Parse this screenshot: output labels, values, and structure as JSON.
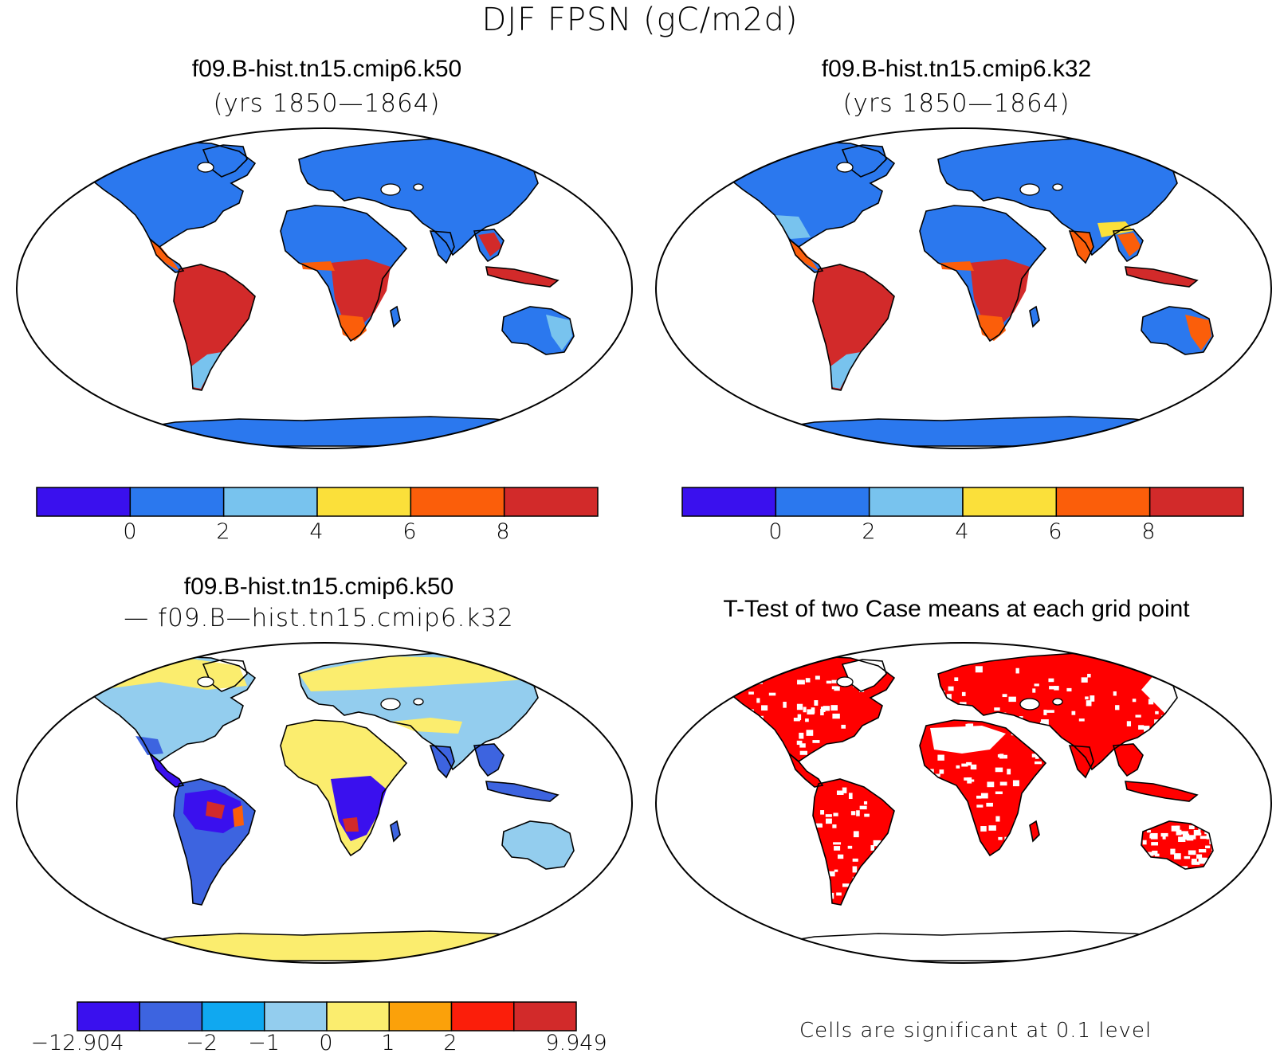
{
  "main_title": "DJF FPSN (gC/m2d)",
  "panels": {
    "top_left": {
      "title": "f09.B-hist.tn15.cmip6.k50",
      "subtitle": "(yrs 1850—1864)"
    },
    "top_right": {
      "title": "f09.B-hist.tn15.cmip6.k32",
      "subtitle": "(yrs 1850—1864)"
    },
    "bottom_left": {
      "title": "f09.B-hist.tn15.cmip6.k50",
      "subtitle": "— f09.B—hist.tn15.cmip6.k32"
    },
    "bottom_right": {
      "title": "T-Test of two Case means at each grid point",
      "note": "Cells are significant at 0.1 level"
    }
  },
  "colorbars": {
    "abs": {
      "colors": [
        "#3a10ee",
        "#2b78ee",
        "#78c3ee",
        "#fbe03a",
        "#fb5e0a",
        "#d22a2a"
      ],
      "tick_labels": [
        "0",
        "2",
        "4",
        "6",
        "8"
      ]
    },
    "diff": {
      "colors": [
        "#3a10ee",
        "#3d64e0",
        "#10a8f0",
        "#93cdee",
        "#fbed6e",
        "#fba10a",
        "#fb1e0a",
        "#d22a2a"
      ],
      "tick_labels": [
        "−12.904",
        "−2",
        "−1",
        "0",
        "1",
        "2",
        "9.949"
      ]
    }
  },
  "map_colors": {
    "land_blue": "#2b78ee",
    "tropics_red": "#d22a2a",
    "orange": "#fb5e0a",
    "yellow": "#fbe03a",
    "lightblue": "#78c3ee",
    "diff_yellow": "#fbed6e",
    "diff_lightblue": "#93cdee",
    "diff_blue": "#3d64e0",
    "diff_purple": "#3a10ee",
    "sig_red": "#ff0000"
  }
}
